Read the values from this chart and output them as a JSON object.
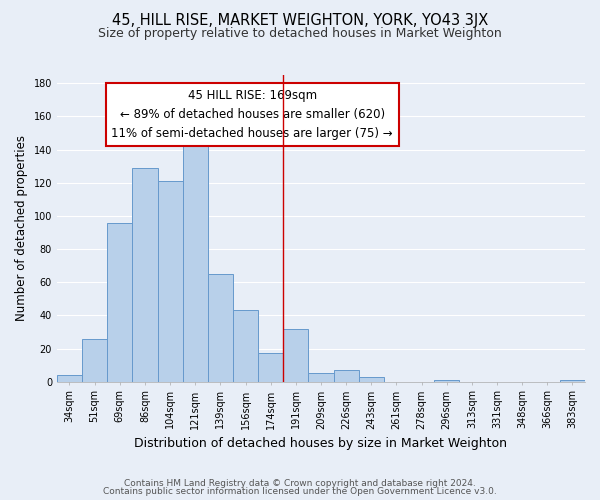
{
  "title": "45, HILL RISE, MARKET WEIGHTON, YORK, YO43 3JX",
  "subtitle": "Size of property relative to detached houses in Market Weighton",
  "xlabel": "Distribution of detached houses by size in Market Weighton",
  "ylabel": "Number of detached properties",
  "bar_labels": [
    "34sqm",
    "51sqm",
    "69sqm",
    "86sqm",
    "104sqm",
    "121sqm",
    "139sqm",
    "156sqm",
    "174sqm",
    "191sqm",
    "209sqm",
    "226sqm",
    "243sqm",
    "261sqm",
    "278sqm",
    "296sqm",
    "313sqm",
    "331sqm",
    "348sqm",
    "366sqm",
    "383sqm"
  ],
  "bar_heights": [
    4,
    26,
    96,
    129,
    121,
    151,
    65,
    43,
    17,
    32,
    5,
    7,
    3,
    0,
    0,
    1,
    0,
    0,
    0,
    0,
    1
  ],
  "bar_color": "#b8d0ea",
  "bar_edge_color": "#6699cc",
  "reference_line_x": 8.5,
  "reference_line_color": "#cc0000",
  "annotation_text_line1": "45 HILL RISE: 169sqm",
  "annotation_text_line2": "← 89% of detached houses are smaller (620)",
  "annotation_text_line3": "11% of semi-detached houses are larger (75) →",
  "ylim": [
    0,
    185
  ],
  "yticks": [
    0,
    20,
    40,
    60,
    80,
    100,
    120,
    140,
    160,
    180
  ],
  "footer_line1": "Contains HM Land Registry data © Crown copyright and database right 2024.",
  "footer_line2": "Contains public sector information licensed under the Open Government Licence v3.0.",
  "background_color": "#e8eef7",
  "grid_color": "#ffffff",
  "title_fontsize": 10.5,
  "subtitle_fontsize": 9,
  "tick_fontsize": 7,
  "ylabel_fontsize": 8.5,
  "xlabel_fontsize": 9,
  "footer_fontsize": 6.5,
  "annotation_fontsize": 8.5
}
